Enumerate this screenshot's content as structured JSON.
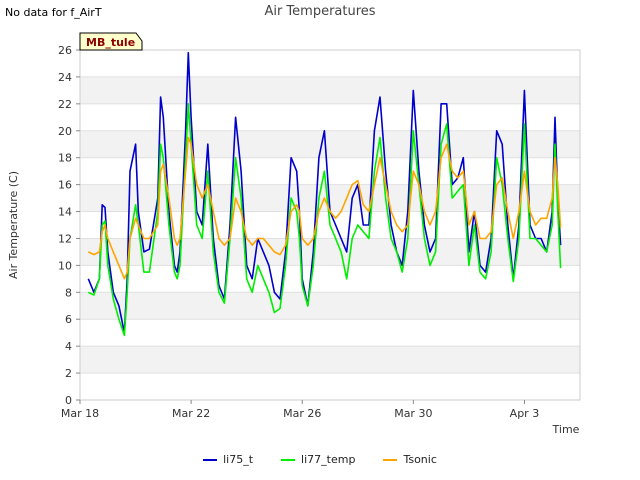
{
  "notice": "No data for f_AirT",
  "chart_data": {
    "type": "line",
    "title": "Air Temperatures",
    "xlabel": "Time",
    "ylabel": "Air Temperature (C)",
    "ylim": [
      0,
      26
    ],
    "y_ticks": [
      0,
      2,
      4,
      6,
      8,
      10,
      12,
      14,
      16,
      18,
      20,
      22,
      24,
      26
    ],
    "xlim_days": [
      0,
      18
    ],
    "x_ticks": [
      {
        "day": 0,
        "label": "Mar 18"
      },
      {
        "day": 4,
        "label": "Mar 22"
      },
      {
        "day": 8,
        "label": "Mar 26"
      },
      {
        "day": 12,
        "label": "Mar 30"
      },
      {
        "day": 16,
        "label": "Apr 3"
      }
    ],
    "annotation": "MB_tule",
    "legend_position": "bottom-center",
    "series": [
      {
        "name": "li75_t",
        "color": "#0000cc",
        "x_days": [
          0.3,
          0.5,
          0.7,
          0.8,
          0.9,
          1.0,
          1.2,
          1.4,
          1.6,
          1.7,
          1.8,
          2.0,
          2.1,
          2.3,
          2.5,
          2.8,
          2.9,
          3.0,
          3.2,
          3.4,
          3.5,
          3.6,
          3.8,
          3.9,
          4.0,
          4.2,
          4.4,
          4.6,
          4.8,
          5.0,
          5.2,
          5.4,
          5.6,
          5.8,
          6.0,
          6.1,
          6.2,
          6.4,
          6.6,
          6.8,
          7.0,
          7.2,
          7.4,
          7.6,
          7.8,
          7.9,
          8.0,
          8.2,
          8.4,
          8.6,
          8.8,
          9.0,
          9.2,
          9.4,
          9.6,
          9.8,
          10.0,
          10.2,
          10.4,
          10.6,
          10.8,
          11.0,
          11.2,
          11.4,
          11.6,
          11.8,
          12.0,
          12.2,
          12.4,
          12.6,
          12.8,
          13.0,
          13.2,
          13.4,
          13.6,
          13.8,
          14.0,
          14.2,
          14.4,
          14.6,
          14.8,
          15.0,
          15.2,
          15.4,
          15.6,
          15.8,
          16.0,
          16.2,
          16.4,
          16.6,
          16.8,
          17.0,
          17.1,
          17.2,
          17.3
        ],
        "values": [
          9,
          8,
          9,
          14.5,
          14.3,
          11,
          8,
          7,
          5,
          9,
          17,
          19,
          14,
          11,
          11.2,
          15,
          22.5,
          21,
          14,
          10,
          9.5,
          11,
          20,
          25.8,
          21,
          14,
          13,
          19,
          12,
          8.5,
          7.5,
          13,
          21,
          17,
          10,
          9.5,
          9,
          12,
          11,
          10,
          8,
          7.5,
          11,
          18,
          17,
          14,
          9,
          7,
          11,
          18,
          20,
          14,
          13,
          12,
          11,
          15,
          16,
          13,
          13,
          20,
          22.5,
          17,
          13,
          11,
          10,
          14,
          23,
          17,
          13,
          11,
          12,
          22,
          22,
          16,
          16.5,
          18,
          11,
          14,
          10,
          9.5,
          12,
          20,
          19,
          13,
          9,
          13,
          23,
          13,
          12,
          12,
          11,
          14,
          21,
          15,
          11.5
        ]
      },
      {
        "name": "li77_temp",
        "color": "#00ee00",
        "x_days": [
          0.3,
          0.5,
          0.7,
          0.8,
          0.9,
          1.0,
          1.2,
          1.4,
          1.6,
          1.7,
          1.8,
          2.0,
          2.1,
          2.3,
          2.5,
          2.8,
          2.9,
          3.0,
          3.2,
          3.4,
          3.5,
          3.6,
          3.8,
          3.9,
          4.0,
          4.2,
          4.4,
          4.6,
          4.8,
          5.0,
          5.2,
          5.4,
          5.6,
          5.8,
          6.0,
          6.1,
          6.2,
          6.4,
          6.6,
          6.8,
          7.0,
          7.2,
          7.4,
          7.6,
          7.8,
          7.9,
          8.0,
          8.2,
          8.4,
          8.6,
          8.8,
          9.0,
          9.2,
          9.4,
          9.6,
          9.8,
          10.0,
          10.2,
          10.4,
          10.6,
          10.8,
          11.0,
          11.2,
          11.4,
          11.6,
          11.8,
          12.0,
          12.2,
          12.4,
          12.6,
          12.8,
          13.0,
          13.2,
          13.4,
          13.6,
          13.8,
          14.0,
          14.2,
          14.4,
          14.6,
          14.8,
          15.0,
          15.2,
          15.4,
          15.6,
          15.8,
          16.0,
          16.2,
          16.4,
          16.6,
          16.8,
          17.0,
          17.1,
          17.2,
          17.3
        ],
        "values": [
          8,
          7.8,
          9,
          13,
          13.3,
          10,
          7.5,
          6,
          4.8,
          8,
          12,
          14.5,
          13,
          9.5,
          9.5,
          14,
          19,
          18,
          13,
          9.5,
          9,
          10,
          18,
          22,
          19,
          13,
          12,
          17,
          11,
          8,
          7.2,
          12,
          18,
          15,
          9,
          8.5,
          8,
          10,
          9,
          8,
          6.5,
          6.8,
          10,
          15,
          14,
          12,
          8.5,
          7,
          10,
          15,
          17,
          13,
          12,
          11,
          9,
          12,
          13,
          12.5,
          12,
          17,
          19.5,
          15,
          12,
          11,
          9.5,
          12,
          20,
          16,
          12,
          10,
          11,
          19,
          20.5,
          15,
          15.5,
          16,
          10,
          13,
          9.5,
          9,
          11,
          18,
          16,
          12,
          8.8,
          12,
          20.5,
          12,
          12,
          11.5,
          11,
          13,
          19,
          14,
          9.8
        ]
      },
      {
        "name": "Tsonic",
        "color": "#ffa500",
        "x_days": [
          0.3,
          0.5,
          0.7,
          0.8,
          0.9,
          1.0,
          1.2,
          1.4,
          1.6,
          1.7,
          1.8,
          2.0,
          2.1,
          2.3,
          2.5,
          2.8,
          2.9,
          3.0,
          3.2,
          3.4,
          3.5,
          3.6,
          3.8,
          3.9,
          4.0,
          4.2,
          4.4,
          4.6,
          4.8,
          5.0,
          5.2,
          5.4,
          5.6,
          5.8,
          6.0,
          6.1,
          6.2,
          6.4,
          6.6,
          6.8,
          7.0,
          7.2,
          7.4,
          7.6,
          7.8,
          7.9,
          8.0,
          8.2,
          8.4,
          8.6,
          8.8,
          9.0,
          9.2,
          9.4,
          9.6,
          9.8,
          10.0,
          10.2,
          10.4,
          10.6,
          10.8,
          11.0,
          11.2,
          11.4,
          11.6,
          11.8,
          12.0,
          12.2,
          12.4,
          12.6,
          12.8,
          13.0,
          13.2,
          13.4,
          13.6,
          13.8,
          14.0,
          14.2,
          14.4,
          14.6,
          14.8,
          15.0,
          15.2,
          15.4,
          15.6,
          15.8,
          16.0,
          16.2,
          16.4,
          16.6,
          16.8,
          17.0,
          17.1,
          17.2,
          17.3
        ],
        "values": [
          11,
          10.8,
          11,
          12.5,
          13,
          12,
          11,
          10,
          9,
          9.5,
          12,
          13.5,
          13,
          12,
          12,
          13,
          17,
          17.5,
          15,
          12,
          11.5,
          12,
          17,
          19.5,
          19,
          16,
          15,
          16,
          14,
          12,
          11.5,
          12,
          15,
          14,
          12,
          11.8,
          11.5,
          12,
          12,
          11.5,
          11,
          10.8,
          11.5,
          14,
          14.5,
          14,
          12,
          11.5,
          12,
          14,
          15,
          14,
          13.5,
          14,
          15,
          16,
          16.3,
          14.5,
          14,
          16,
          18,
          16,
          14,
          13,
          12.5,
          13,
          17,
          16,
          14,
          13,
          14,
          18,
          19,
          17,
          16.5,
          17,
          13,
          14,
          12,
          12,
          12.5,
          16,
          16.5,
          14,
          12,
          14,
          17,
          14,
          13,
          13.5,
          13.5,
          15,
          18,
          16,
          12.8
        ]
      }
    ]
  }
}
